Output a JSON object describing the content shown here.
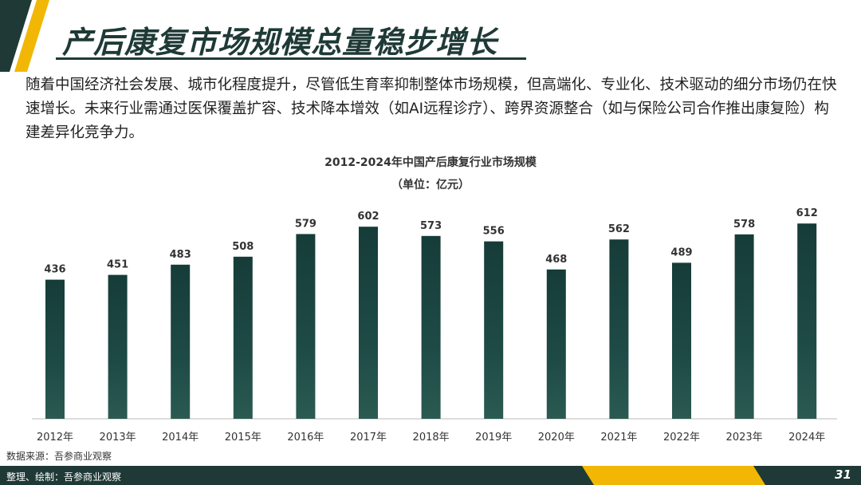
{
  "slide": {
    "title": "产后康复市场规模总量稳步增长",
    "intro": "随着中国经济社会发展、城市化程度提升，尽管低生育率抑制整体市场规模，但高端化、专业化、技术驱动的细分市场仍在快速增长。未来行业需通过医保覆盖扩容、技术降本增效（如AI远程诊疗）、跨界资源整合（如与保险公司合作推出康复险）构建差异化竞争力。",
    "source": "数据来源：吾参商业观察",
    "footer": "整理、绘制：吾参商业观察",
    "page_number": "31"
  },
  "colors": {
    "bar": "#1e4a45",
    "accent_green": "#1f3a36",
    "accent_yellow": "#f2b705"
  },
  "chart_data": {
    "type": "bar",
    "title": "2012-2024年中国产后康复行业市场规模",
    "subtitle": "（单位：亿元）",
    "categories": [
      "2012年",
      "2013年",
      "2014年",
      "2015年",
      "2016年",
      "2017年",
      "2018年",
      "2019年",
      "2020年",
      "2021年",
      "2022年",
      "2023年",
      "2024年"
    ],
    "values": [
      436,
      451,
      483,
      508,
      579,
      602,
      573,
      556,
      468,
      562,
      489,
      578,
      612
    ],
    "ylim": [
      0,
      650
    ],
    "grid": false,
    "legend": "none"
  }
}
